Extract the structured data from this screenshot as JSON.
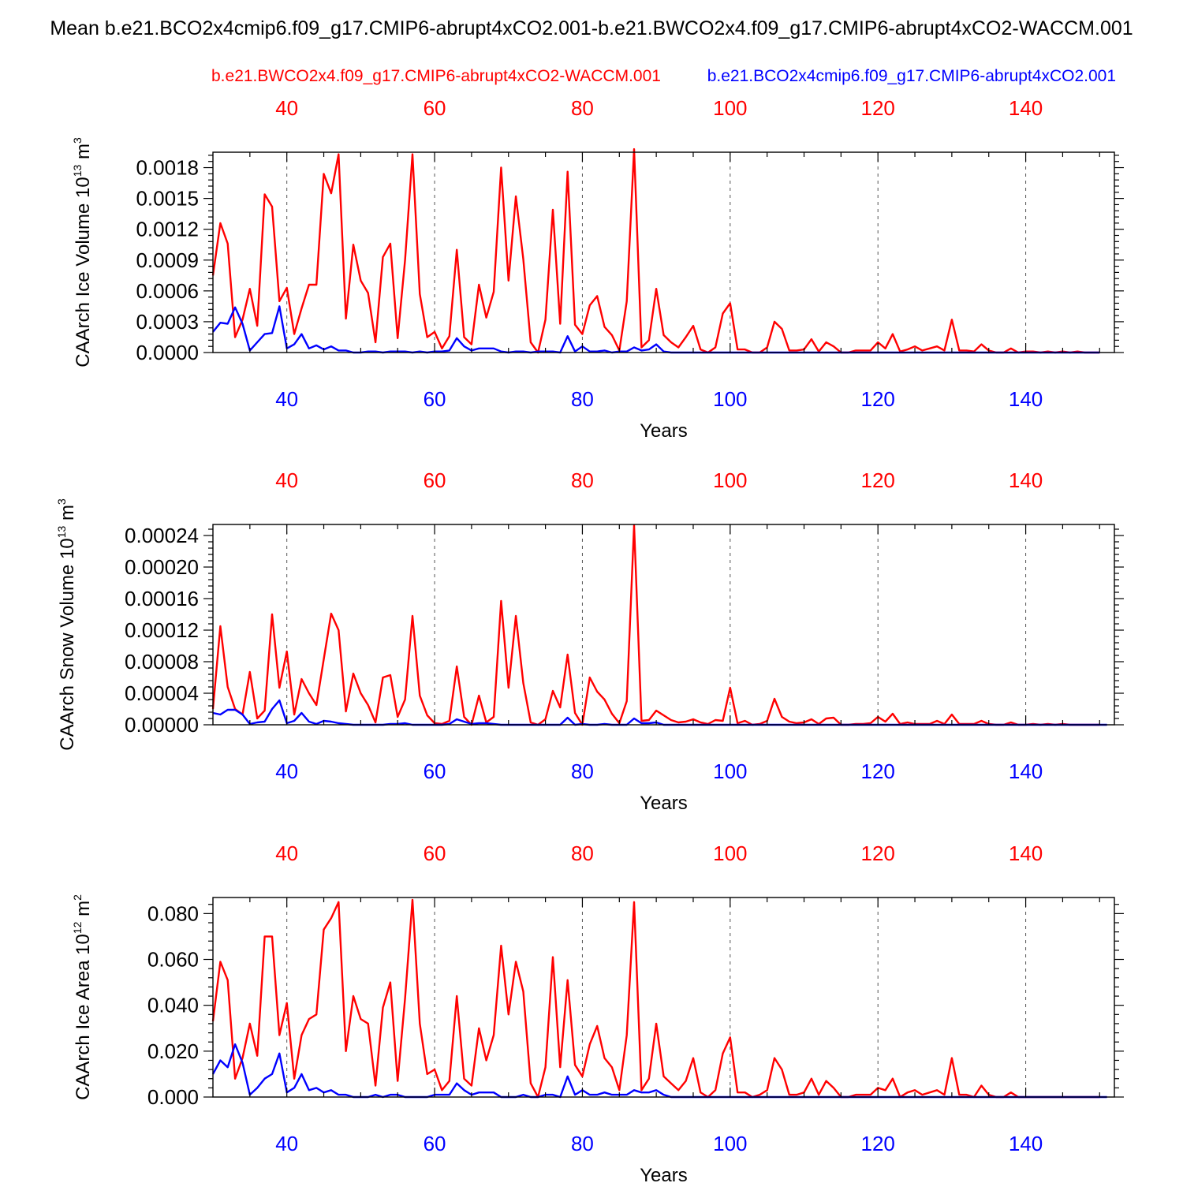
{
  "figure_title": "Mean b.e21.BCO2x4cmip6.f09_g17.CMIP6-abrupt4xCO2.001-b.e21.BWCO2x4.f09_g17.CMIP6-abrupt4xCO2-WACCM.001",
  "colors": {
    "red": "#ff0000",
    "blue": "#0000ff",
    "axis": "#000000",
    "grid": "#555555"
  },
  "chart_data": [
    {
      "type": "line",
      "title": "",
      "top_legend": {
        "red": "b.e21.BWCO2x4.f09_g17.CMIP6-abrupt4xCO2-WACCM.001",
        "blue": "b.e21.BCO2x4cmip6.f09_g17.CMIP6-abrupt4xCO2.001"
      },
      "xlabel": "Years",
      "ylabel": "CAArch Ice Volume 10",
      "ylabel_exp": "13",
      "ylabel_unit": " m",
      "ylabel_unit_exp": "3",
      "xlim": [
        30,
        152
      ],
      "ylim": [
        0,
        0.00195
      ],
      "xticks": [
        40,
        60,
        80,
        100,
        120,
        140
      ],
      "xtick_labels": [
        "40",
        "60",
        "80",
        "100",
        "120",
        "140"
      ],
      "yticks": [
        0,
        0.0003,
        0.0006,
        0.0009,
        0.0012,
        0.0015,
        0.0018
      ],
      "ytick_labels": [
        "0.0000",
        "0.0003",
        "0.0006",
        "0.0009",
        "0.0012",
        "0.0015",
        "0.0018"
      ],
      "x_start": 30,
      "series": [
        {
          "name": "b.e21.BWCO2x4.f09_g17.CMIP6-abrupt4xCO2-WACCM.001",
          "color": "red",
          "values": [
            0.00075,
            0.00126,
            0.00106,
            0.00015,
            0.00032,
            0.00062,
            0.00026,
            0.00154,
            0.00142,
            0.0005,
            0.00063,
            0.00018,
            0.00043,
            0.00066,
            0.00066,
            0.00174,
            0.00155,
            0.00193,
            0.00033,
            0.00105,
            0.0007,
            0.00058,
            0.0001,
            0.00093,
            0.00106,
            0.00014,
            0.0009,
            0.00193,
            0.00057,
            0.00015,
            0.0002,
            4e-05,
            0.00016,
            0.001,
            0.00015,
            8e-05,
            0.00066,
            0.00034,
            0.00059,
            0.0018,
            0.0007,
            0.00152,
            0.00091,
            0.0001,
            0.0,
            0.00032,
            0.00139,
            0.00028,
            0.00176,
            0.00027,
            0.00018,
            0.00046,
            0.00055,
            0.00025,
            0.00017,
            2e-05,
            0.0005,
            0.00198,
            5e-05,
            0.00012,
            0.00062,
            0.00017,
            0.0001,
            5e-05,
            0.00015,
            0.00026,
            3e-05,
            0.0,
            5e-05,
            0.00038,
            0.00048,
            3e-05,
            3e-05,
            0.0,
            0.0,
            5e-05,
            0.0003,
            0.00023,
            2e-05,
            2e-05,
            3e-05,
            0.00013,
            1e-05,
            0.0001,
            6e-05,
            0.0,
            0.0,
            2e-05,
            2e-05,
            2e-05,
            0.0001,
            4e-05,
            0.00018,
            1e-05,
            3e-05,
            6e-05,
            2e-05,
            4e-05,
            6e-05,
            2e-05,
            0.00032,
            2e-05,
            2e-05,
            1e-05,
            8e-05,
            2e-05,
            0.0,
            0.0,
            4e-05,
            0.0,
            1e-05,
            1e-05,
            0.0,
            1e-05,
            0.0,
            1e-05,
            0.0,
            1e-05,
            0.0,
            0.0,
            0.0
          ]
        },
        {
          "name": "b.e21.BCO2x4cmip6.f09_g17.CMIP6-abrupt4xCO2.001",
          "color": "blue",
          "values": [
            0.0002,
            0.00029,
            0.00028,
            0.00044,
            0.00028,
            2e-05,
            0.0001,
            0.00018,
            0.00019,
            0.00045,
            4e-05,
            8e-05,
            0.00018,
            4e-05,
            7e-05,
            3e-05,
            6e-05,
            2e-05,
            2e-05,
            0.0,
            0.0,
            1e-05,
            1e-05,
            0.0,
            1e-05,
            1e-05,
            1e-05,
            0.0,
            1e-05,
            0.0,
            1e-05,
            1e-05,
            2e-05,
            0.00014,
            6e-05,
            2e-05,
            4e-05,
            4e-05,
            4e-05,
            1e-05,
            0.0,
            1e-05,
            1e-05,
            0.0,
            1e-05,
            1e-05,
            1e-05,
            0.0,
            0.00016,
            1e-05,
            6e-05,
            1e-05,
            1e-05,
            2e-05,
            0.0,
            1e-05,
            1e-05,
            5e-05,
            2e-05,
            3e-05,
            8e-05,
            1e-05,
            0.0,
            0.0,
            0.0,
            0.0,
            0.0,
            0.0,
            0.0,
            0.0,
            0.0,
            0.0,
            0.0,
            0.0,
            0.0,
            0.0,
            0.0,
            0.0,
            0.0,
            0.0,
            0.0,
            0.0,
            0.0,
            0.0,
            0.0,
            0.0,
            0.0,
            0.0,
            0.0,
            0.0,
            0.0,
            0.0,
            0.0,
            0.0,
            0.0,
            0.0,
            0.0,
            0.0,
            0.0,
            0.0,
            0.0,
            0.0,
            0.0,
            0.0,
            0.0,
            0.0,
            0.0,
            0.0,
            0.0,
            0.0,
            0.0,
            0.0,
            0.0,
            0.0,
            0.0,
            0.0,
            0.0,
            0.0,
            0.0,
            0.0,
            0.0
          ]
        }
      ]
    },
    {
      "type": "line",
      "title": "",
      "xlabel": "Years",
      "ylabel": "CAArch Snow Volume 10",
      "ylabel_exp": "13",
      "ylabel_unit": " m",
      "ylabel_unit_exp": "3",
      "xlim": [
        30,
        152
      ],
      "ylim": [
        0,
        0.000254
      ],
      "xticks": [
        40,
        60,
        80,
        100,
        120,
        140
      ],
      "xtick_labels": [
        "40",
        "60",
        "80",
        "100",
        "120",
        "140"
      ],
      "yticks": [
        0,
        4e-05,
        8e-05,
        0.00012,
        0.00016,
        0.0002,
        0.00024
      ],
      "ytick_labels": [
        "0.00000",
        "0.00004",
        "0.00008",
        "0.00012",
        "0.00016",
        "0.00020",
        "0.00024"
      ],
      "x_start": 30,
      "series": [
        {
          "name": "b.e21.BWCO2x4.f09_g17.CMIP6-abrupt4xCO2-WACCM.001",
          "color": "red",
          "values": [
            2e-05,
            0.000125,
            4.8e-05,
            2e-05,
            1.3e-05,
            6.7e-05,
            8e-06,
            1.8e-05,
            0.00014,
            4.7e-05,
            9.3e-05,
            1.3e-05,
            5.8e-05,
            4e-05,
            2.5e-05,
            8.3e-05,
            0.000141,
            0.00012,
            1.7e-05,
            6.5e-05,
            4e-05,
            2.5e-05,
            3e-06,
            6e-05,
            6.3e-05,
            1e-05,
            3.2e-05,
            0.000138,
            3.7e-05,
            1.2e-05,
            2e-06,
            1e-06,
            5e-06,
            7.4e-05,
            1e-05,
            0.0,
            3.7e-05,
            3e-06,
            1e-05,
            0.000157,
            4.7e-05,
            0.000138,
            5.3e-05,
            3e-06,
            0.0,
            7e-06,
            4.3e-05,
            2.2e-05,
            8.9e-05,
            1.5e-05,
            0.0,
            6e-05,
            4.2e-05,
            3.2e-05,
            1.4e-05,
            2e-06,
            3e-05,
            0.000253,
            5e-06,
            6e-06,
            1.8e-05,
            1.2e-05,
            6e-06,
            3e-06,
            4e-06,
            7e-06,
            3e-06,
            1e-06,
            6e-06,
            5e-06,
            4.7e-05,
            2e-06,
            5e-06,
            0.0,
            1e-06,
            5e-06,
            3.3e-05,
            1e-05,
            4e-06,
            2e-06,
            3e-06,
            7e-06,
            1e-06,
            8e-06,
            9e-06,
            0.0,
            0.0,
            1e-06,
            1e-06,
            2e-06,
            1e-05,
            4e-06,
            1.4e-05,
            1e-06,
            3e-06,
            1e-06,
            1e-06,
            1e-06,
            5e-06,
            1e-06,
            1.3e-05,
            1e-06,
            1e-06,
            1e-06,
            5e-06,
            1e-06,
            0.0,
            0.0,
            3e-06,
            0.0,
            0.0,
            1e-06,
            0.0,
            1e-06,
            0.0,
            1e-06,
            0.0,
            0.0,
            0.0,
            0.0,
            0.0
          ]
        },
        {
          "name": "b.e21.BCO2x4cmip6.f09_g17.CMIP6-abrupt4xCO2.001",
          "color": "blue",
          "values": [
            1.5e-05,
            1.3e-05,
            1.9e-05,
            1.9e-05,
            1.3e-05,
            1e-06,
            3e-06,
            4e-06,
            2e-05,
            3.1e-05,
            2e-06,
            5e-06,
            1.5e-05,
            4e-06,
            1e-06,
            5e-06,
            4e-06,
            2e-06,
            1e-06,
            0.0,
            0.0,
            0.0,
            0.0,
            0.0,
            1e-06,
            1e-06,
            2e-06,
            0.0,
            0.0,
            0.0,
            0.0,
            0.0,
            1e-06,
            7e-06,
            4e-06,
            1e-06,
            2e-06,
            2e-06,
            1e-06,
            0.0,
            0.0,
            0.0,
            0.0,
            0.0,
            0.0,
            0.0,
            0.0,
            0.0,
            9e-06,
            0.0,
            1e-06,
            0.0,
            0.0,
            1e-06,
            0.0,
            0.0,
            0.0,
            8e-06,
            2e-06,
            2e-06,
            3e-06,
            0.0,
            0.0,
            0.0,
            0.0,
            0.0,
            0.0,
            0.0,
            0.0,
            0.0,
            0.0,
            0.0,
            0.0,
            0.0,
            0.0,
            0.0,
            0.0,
            0.0,
            0.0,
            0.0,
            0.0,
            0.0,
            0.0,
            0.0,
            0.0,
            0.0,
            0.0,
            0.0,
            0.0,
            0.0,
            0.0,
            0.0,
            0.0,
            0.0,
            0.0,
            0.0,
            0.0,
            0.0,
            0.0,
            0.0,
            0.0,
            0.0,
            0.0,
            0.0,
            0.0,
            0.0,
            0.0,
            0.0,
            0.0,
            0.0,
            0.0,
            0.0,
            0.0,
            0.0,
            0.0,
            0.0,
            0.0,
            0.0,
            0.0,
            0.0,
            0.0,
            0.0
          ]
        }
      ]
    },
    {
      "type": "line",
      "title": "",
      "xlabel": "Years",
      "ylabel": "CAArch Ice Area 10",
      "ylabel_exp": "12",
      "ylabel_unit": " m",
      "ylabel_unit_exp": "2",
      "xlim": [
        30,
        152
      ],
      "ylim": [
        0,
        0.087
      ],
      "xticks": [
        40,
        60,
        80,
        100,
        120,
        140
      ],
      "xtick_labels": [
        "40",
        "60",
        "80",
        "100",
        "120",
        "140"
      ],
      "yticks": [
        0,
        0.02,
        0.04,
        0.06,
        0.08
      ],
      "ytick_labels": [
        "0.000",
        "0.020",
        "0.040",
        "0.060",
        "0.080"
      ],
      "x_start": 30,
      "series": [
        {
          "name": "b.e21.BWCO2x4.f09_g17.CMIP6-abrupt4xCO2-WACCM.001",
          "color": "red",
          "values": [
            0.033,
            0.059,
            0.051,
            0.008,
            0.017,
            0.032,
            0.018,
            0.07,
            0.07,
            0.027,
            0.041,
            0.008,
            0.027,
            0.034,
            0.036,
            0.073,
            0.078,
            0.085,
            0.02,
            0.044,
            0.034,
            0.032,
            0.005,
            0.039,
            0.05,
            0.007,
            0.043,
            0.086,
            0.032,
            0.01,
            0.012,
            0.003,
            0.007,
            0.044,
            0.008,
            0.005,
            0.03,
            0.016,
            0.027,
            0.066,
            0.036,
            0.059,
            0.046,
            0.006,
            0.0,
            0.013,
            0.061,
            0.013,
            0.051,
            0.014,
            0.009,
            0.023,
            0.031,
            0.017,
            0.013,
            0.003,
            0.027,
            0.085,
            0.003,
            0.008,
            0.032,
            0.009,
            0.006,
            0.003,
            0.007,
            0.017,
            0.002,
            0.0,
            0.003,
            0.019,
            0.026,
            0.002,
            0.002,
            0.0,
            0.001,
            0.003,
            0.017,
            0.012,
            0.001,
            0.001,
            0.002,
            0.008,
            0.001,
            0.007,
            0.004,
            0.0,
            0.0,
            0.001,
            0.001,
            0.001,
            0.004,
            0.003,
            0.008,
            0.0,
            0.002,
            0.003,
            0.001,
            0.002,
            0.003,
            0.001,
            0.017,
            0.001,
            0.001,
            0.0,
            0.005,
            0.001,
            0.0,
            0.0,
            0.002,
            0.0,
            0.0,
            0.0,
            0.0,
            0.0,
            0.0,
            0.0,
            0.0,
            0.0,
            0.0,
            0.0,
            0.0
          ]
        },
        {
          "name": "b.e21.BCO2x4cmip6.f09_g17.CMIP6-abrupt4xCO2.001",
          "color": "blue",
          "values": [
            0.01,
            0.016,
            0.013,
            0.023,
            0.015,
            0.001,
            0.004,
            0.008,
            0.01,
            0.019,
            0.002,
            0.004,
            0.01,
            0.003,
            0.004,
            0.002,
            0.003,
            0.001,
            0.001,
            0.0,
            0.0,
            0.0,
            0.001,
            0.0,
            0.001,
            0.001,
            0.0,
            0.0,
            0.0,
            0.0,
            0.001,
            0.001,
            0.001,
            0.006,
            0.003,
            0.001,
            0.002,
            0.002,
            0.002,
            0.0,
            0.0,
            0.0,
            0.001,
            0.0,
            0.0,
            0.001,
            0.001,
            0.0,
            0.009,
            0.001,
            0.003,
            0.001,
            0.001,
            0.002,
            0.001,
            0.001,
            0.001,
            0.003,
            0.002,
            0.002,
            0.003,
            0.001,
            0.0,
            0.0,
            0.0,
            0.0,
            0.0,
            0.0,
            0.0,
            0.0,
            0.0,
            0.0,
            0.0,
            0.0,
            0.0,
            0.0,
            0.0,
            0.0,
            0.0,
            0.0,
            0.0,
            0.0,
            0.0,
            0.0,
            0.0,
            0.0,
            0.0,
            0.0,
            0.0,
            0.0,
            0.0,
            0.0,
            0.0,
            0.0,
            0.0,
            0.0,
            0.0,
            0.0,
            0.0,
            0.0,
            0.0,
            0.0,
            0.0,
            0.0,
            0.0,
            0.0,
            0.0,
            0.0,
            0.0,
            0.0,
            0.0,
            0.0,
            0.0,
            0.0,
            0.0,
            0.0,
            0.0,
            0.0,
            0.0,
            0.0,
            0.0,
            0.0
          ]
        }
      ]
    }
  ]
}
